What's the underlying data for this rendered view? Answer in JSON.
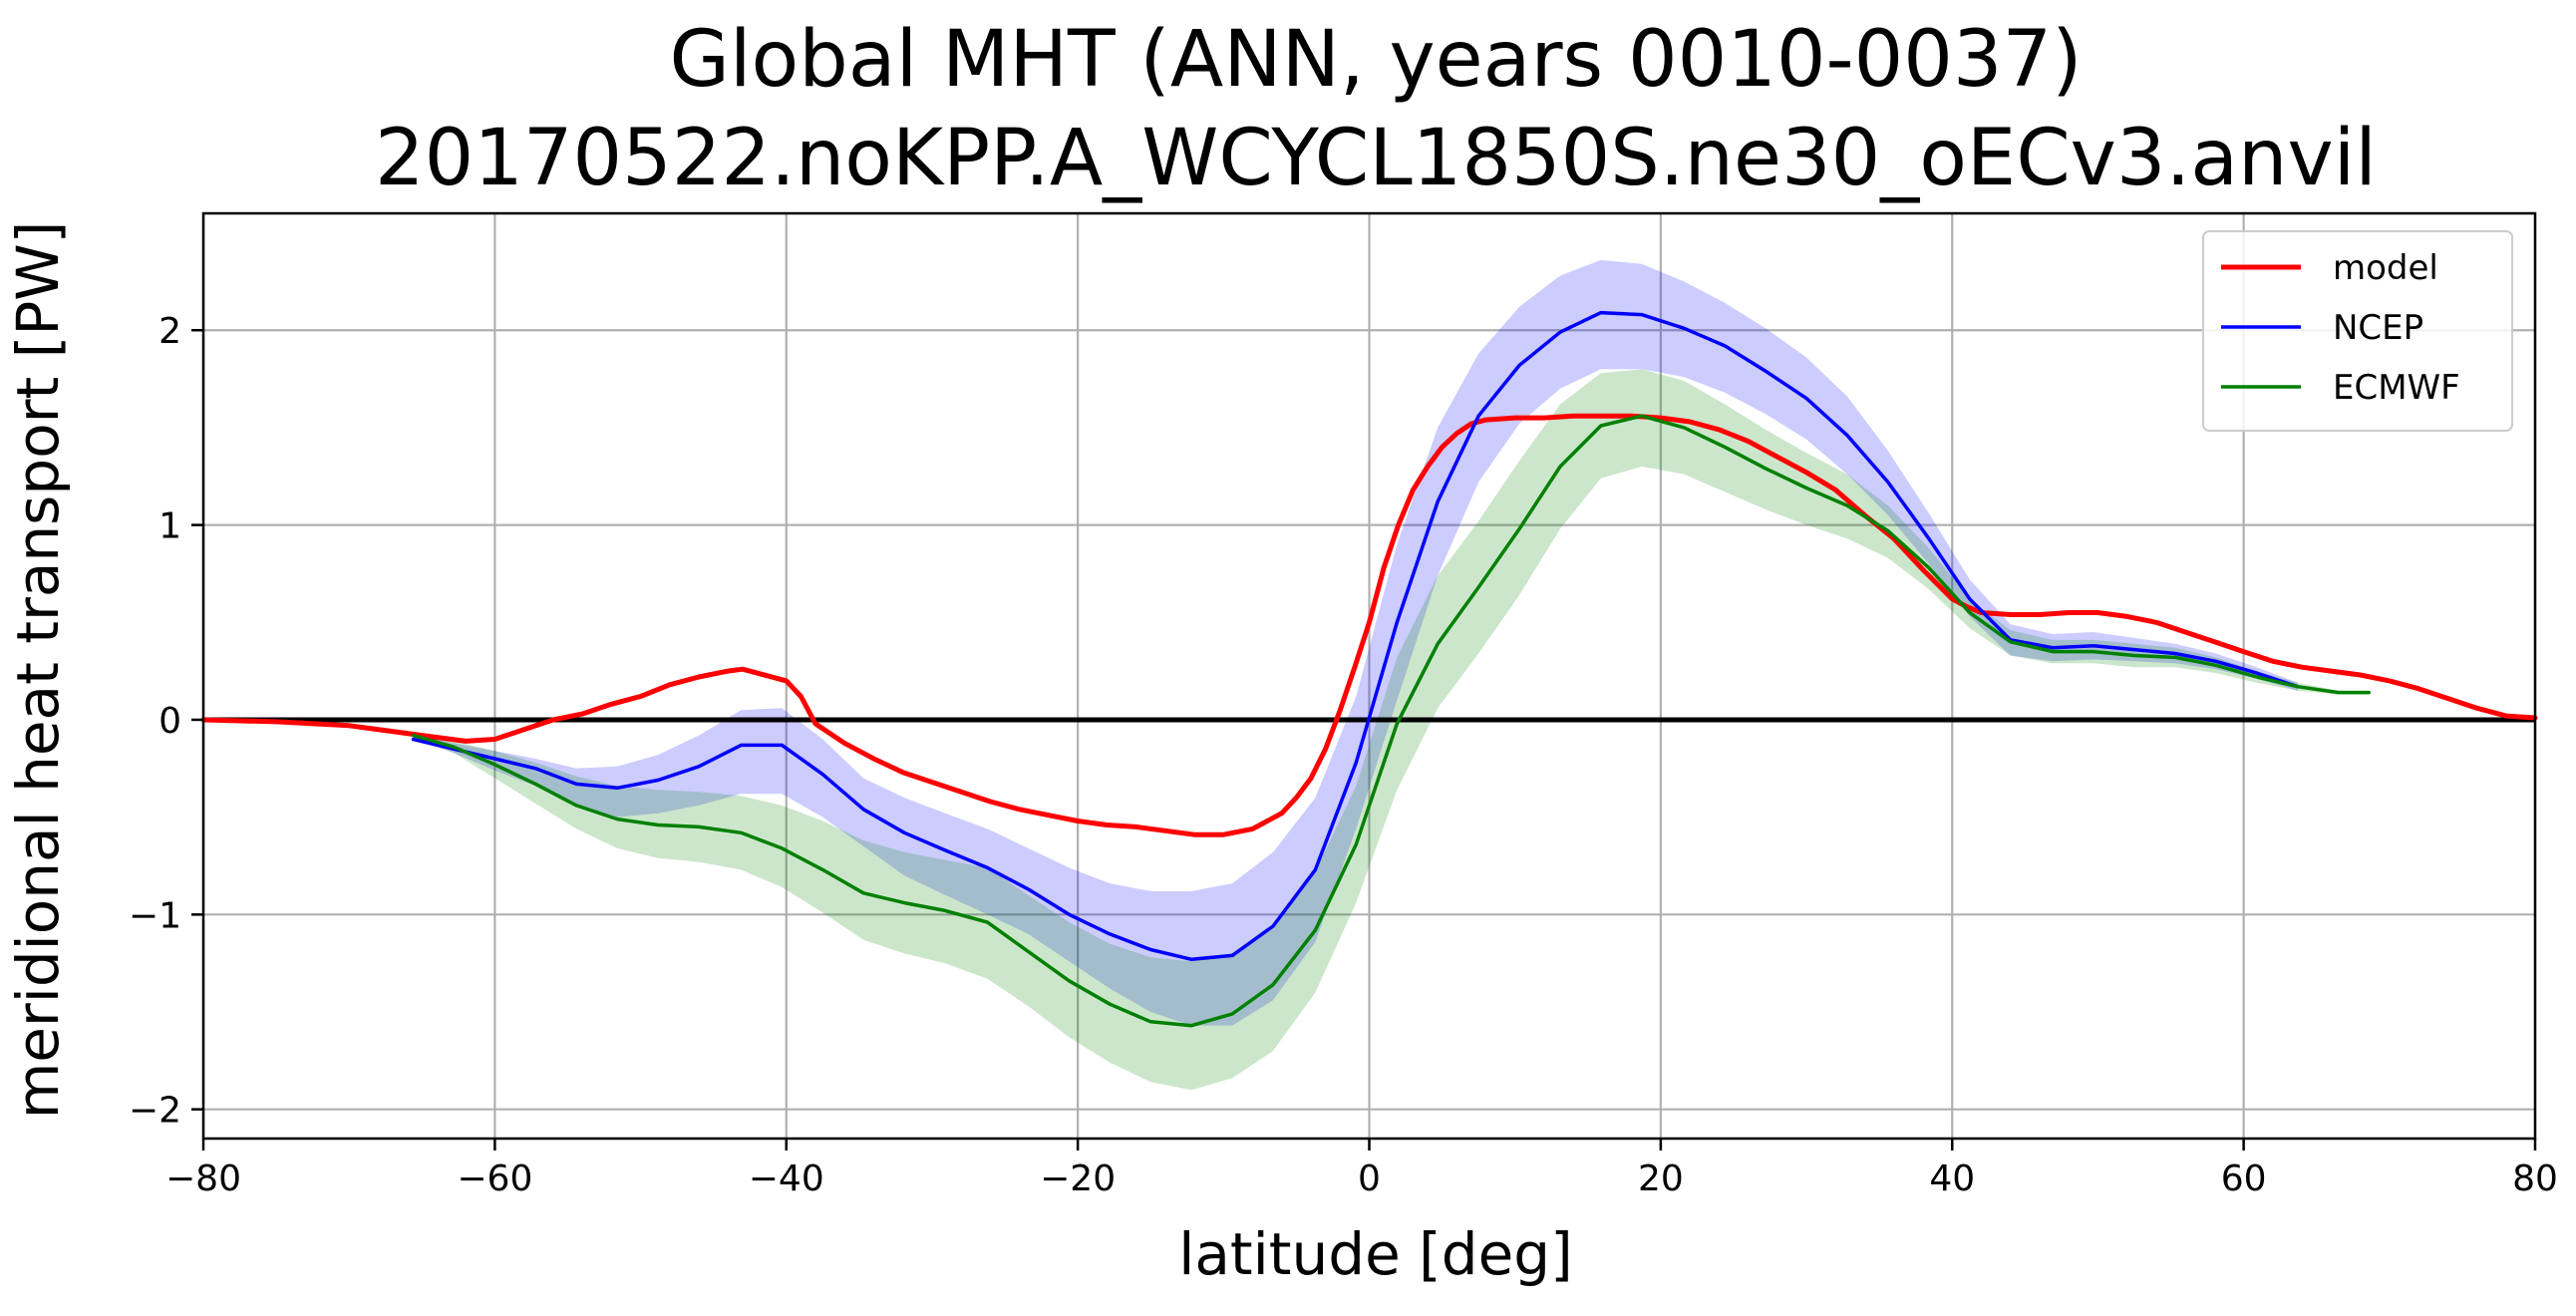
{
  "chart_data": {
    "type": "line",
    "title": "Global MHT (ANN, years 0010-0037)",
    "subtitle": "20170522.noKPP.A_WCYCL1850S.ne30_oECv3.anvil",
    "xlabel": "latitude [deg]",
    "ylabel": "meridional heat transport [PW]",
    "xlim": [
      -80,
      80
    ],
    "ylim": [
      -2.15,
      2.6
    ],
    "xticks": [
      -80,
      -60,
      -40,
      -20,
      0,
      20,
      40,
      60,
      80
    ],
    "xtick_labels": [
      "−80",
      "−60",
      "−40",
      "−20",
      "0",
      "20",
      "40",
      "60",
      "80"
    ],
    "yticks": [
      -2,
      -1,
      0,
      1,
      2
    ],
    "ytick_labels": [
      "−2",
      "−1",
      "0",
      "1",
      "2"
    ],
    "grid": true,
    "legend_position": "top-right",
    "zero_line": true,
    "series": [
      {
        "name": "model",
        "color": "#ff0000",
        "x": [
          -80,
          -75,
          -70,
          -65,
          -62,
          -60,
          -58,
          -56,
          -54,
          -52,
          -50,
          -48,
          -46,
          -44,
          -43,
          -42,
          -40,
          -39,
          -38,
          -36,
          -34,
          -32,
          -30,
          -28,
          -26,
          -24,
          -22,
          -20,
          -18,
          -16,
          -14,
          -12,
          -10,
          -8,
          -6,
          -5,
          -4,
          -3,
          -2,
          -1,
          0,
          1,
          2,
          3,
          4,
          5,
          6,
          7,
          8,
          10,
          12,
          14,
          16,
          18,
          20,
          22,
          24,
          26,
          28,
          30,
          32,
          34,
          36,
          38,
          40,
          41,
          42,
          44,
          46,
          48,
          50,
          52,
          54,
          56,
          58,
          60,
          62,
          64,
          66,
          68,
          70,
          72,
          74,
          76,
          78,
          80
        ],
        "y": [
          0.0,
          -0.01,
          -0.03,
          -0.08,
          -0.11,
          -0.1,
          -0.05,
          0.0,
          0.03,
          0.08,
          0.12,
          0.18,
          0.22,
          0.25,
          0.26,
          0.24,
          0.2,
          0.12,
          -0.02,
          -0.12,
          -0.2,
          -0.27,
          -0.32,
          -0.37,
          -0.42,
          -0.46,
          -0.49,
          -0.52,
          -0.54,
          -0.55,
          -0.57,
          -0.59,
          -0.59,
          -0.56,
          -0.48,
          -0.4,
          -0.3,
          -0.15,
          0.05,
          0.27,
          0.5,
          0.78,
          1.0,
          1.18,
          1.3,
          1.4,
          1.47,
          1.52,
          1.54,
          1.55,
          1.55,
          1.56,
          1.56,
          1.56,
          1.55,
          1.53,
          1.49,
          1.43,
          1.35,
          1.27,
          1.18,
          1.05,
          0.93,
          0.77,
          0.62,
          0.58,
          0.55,
          0.54,
          0.54,
          0.55,
          0.55,
          0.53,
          0.5,
          0.45,
          0.4,
          0.35,
          0.3,
          0.27,
          0.25,
          0.23,
          0.2,
          0.16,
          0.11,
          0.06,
          0.02,
          0.01
        ]
      },
      {
        "name": "NCEP",
        "color": "#0000ff",
        "x": [
          -65.6,
          -62.8,
          -60,
          -57.2,
          -54.4,
          -51.6,
          -48.8,
          -46,
          -43.1,
          -40.3,
          -37.5,
          -34.7,
          -31.9,
          -29.1,
          -26.2,
          -23.4,
          -20.6,
          -17.8,
          -15,
          -12.2,
          -9.4,
          -6.6,
          -3.7,
          -0.9,
          1.9,
          4.7,
          7.5,
          10.3,
          13.1,
          15.9,
          18.7,
          21.6,
          24.4,
          27.2,
          30,
          32.8,
          35.6,
          38.4,
          41.2,
          44,
          46.9,
          49.7,
          52.5,
          55.3,
          58.1,
          60.9,
          63.7
        ],
        "y": [
          -0.1,
          -0.15,
          -0.2,
          -0.25,
          -0.33,
          -0.35,
          -0.31,
          -0.24,
          -0.13,
          -0.13,
          -0.28,
          -0.46,
          -0.58,
          -0.67,
          -0.76,
          -0.87,
          -1.0,
          -1.1,
          -1.18,
          -1.23,
          -1.21,
          -1.06,
          -0.77,
          -0.22,
          0.5,
          1.12,
          1.56,
          1.82,
          1.99,
          2.09,
          2.08,
          2.01,
          1.92,
          1.79,
          1.65,
          1.46,
          1.22,
          0.93,
          0.62,
          0.41,
          0.37,
          0.38,
          0.36,
          0.34,
          0.3,
          0.24,
          0.17
        ]
      },
      {
        "name": "ECMWF",
        "color": "#008000",
        "x": [
          -65.6,
          -62.8,
          -60,
          -57.2,
          -54.4,
          -51.6,
          -48.8,
          -46,
          -43.1,
          -40.3,
          -37.5,
          -34.7,
          -31.9,
          -29.1,
          -26.2,
          -23.4,
          -20.6,
          -17.8,
          -15,
          -12.2,
          -9.4,
          -6.6,
          -3.7,
          -0.9,
          1.9,
          4.7,
          7.5,
          10.3,
          13.1,
          15.9,
          18.7,
          21.6,
          24.4,
          27.2,
          30,
          32.8,
          35.6,
          38.4,
          41.2,
          44,
          46.9,
          49.7,
          52.5,
          55.3,
          58.1,
          60.9,
          63.7,
          66.5,
          68.6
        ],
        "y": [
          -0.08,
          -0.14,
          -0.23,
          -0.33,
          -0.44,
          -0.51,
          -0.54,
          -0.55,
          -0.58,
          -0.66,
          -0.77,
          -0.89,
          -0.94,
          -0.98,
          -1.04,
          -1.19,
          -1.34,
          -1.46,
          -1.55,
          -1.57,
          -1.51,
          -1.36,
          -1.08,
          -0.64,
          -0.02,
          0.39,
          0.68,
          0.98,
          1.3,
          1.51,
          1.56,
          1.5,
          1.4,
          1.29,
          1.19,
          1.1,
          0.97,
          0.78,
          0.55,
          0.4,
          0.35,
          0.35,
          0.33,
          0.32,
          0.28,
          0.22,
          0.17,
          0.14,
          0.14
        ]
      }
    ],
    "bands": [
      {
        "name": "NCEP",
        "color": "#0000ff",
        "opacity": 0.2,
        "x": [
          -65.6,
          -62.8,
          -60,
          -57.2,
          -54.4,
          -51.6,
          -48.8,
          -46,
          -43.1,
          -40.3,
          -37.5,
          -34.7,
          -31.9,
          -29.1,
          -26.2,
          -23.4,
          -20.6,
          -17.8,
          -15,
          -12.2,
          -9.4,
          -6.6,
          -3.7,
          -0.9,
          1.9,
          4.7,
          7.5,
          10.3,
          13.1,
          15.9,
          18.7,
          21.6,
          24.4,
          27.2,
          30,
          32.8,
          35.6,
          38.4,
          41.2,
          44,
          46.9,
          49.7,
          52.5,
          55.3,
          58.1,
          60.9,
          63.7
        ],
        "upper": [
          -0.08,
          -0.12,
          -0.16,
          -0.2,
          -0.25,
          -0.24,
          -0.18,
          -0.08,
          0.05,
          0.06,
          -0.1,
          -0.3,
          -0.4,
          -0.48,
          -0.56,
          -0.66,
          -0.76,
          -0.84,
          -0.88,
          -0.88,
          -0.84,
          -0.68,
          -0.4,
          0.12,
          0.9,
          1.5,
          1.88,
          2.12,
          2.28,
          2.36,
          2.34,
          2.25,
          2.14,
          2.01,
          1.86,
          1.66,
          1.38,
          1.06,
          0.72,
          0.49,
          0.44,
          0.45,
          0.42,
          0.39,
          0.34,
          0.27,
          0.19
        ],
        "lower": [
          -0.1,
          -0.17,
          -0.26,
          -0.34,
          -0.44,
          -0.5,
          -0.48,
          -0.44,
          -0.38,
          -0.38,
          -0.5,
          -0.65,
          -0.8,
          -0.9,
          -1.0,
          -1.1,
          -1.24,
          -1.38,
          -1.5,
          -1.57,
          -1.57,
          -1.44,
          -1.14,
          -0.56,
          0.1,
          0.74,
          1.22,
          1.52,
          1.7,
          1.8,
          1.8,
          1.76,
          1.68,
          1.57,
          1.44,
          1.26,
          1.05,
          0.8,
          0.53,
          0.33,
          0.3,
          0.31,
          0.3,
          0.29,
          0.26,
          0.21,
          0.15
        ]
      },
      {
        "name": "ECMWF",
        "color": "#008000",
        "opacity": 0.2,
        "x": [
          -65.6,
          -62.8,
          -60,
          -57.2,
          -54.4,
          -51.6,
          -48.8,
          -46,
          -43.1,
          -40.3,
          -37.5,
          -34.7,
          -31.9,
          -29.1,
          -26.2,
          -23.4,
          -20.6,
          -17.8,
          -15,
          -12.2,
          -9.4,
          -6.6,
          -3.7,
          -0.9,
          1.9,
          4.7,
          7.5,
          10.3,
          13.1,
          15.9,
          18.7,
          21.6,
          24.4,
          27.2,
          30,
          32.8,
          35.6,
          38.4,
          41.2,
          44,
          46.9,
          49.7,
          52.5,
          55.3,
          58.1,
          60.9,
          63.7,
          66.5,
          68.6
        ],
        "upper": [
          -0.07,
          -0.11,
          -0.16,
          -0.22,
          -0.29,
          -0.34,
          -0.36,
          -0.37,
          -0.39,
          -0.44,
          -0.52,
          -0.62,
          -0.68,
          -0.72,
          -0.76,
          -0.9,
          -1.04,
          -1.15,
          -1.22,
          -1.24,
          -1.2,
          -1.06,
          -0.78,
          -0.34,
          0.32,
          0.74,
          1.02,
          1.33,
          1.62,
          1.78,
          1.8,
          1.74,
          1.62,
          1.49,
          1.37,
          1.26,
          1.1,
          0.88,
          0.62,
          0.46,
          0.41,
          0.41,
          0.39,
          0.37,
          0.32,
          0.25,
          0.19,
          0.15,
          0.15
        ],
        "lower": [
          -0.09,
          -0.17,
          -0.3,
          -0.43,
          -0.56,
          -0.66,
          -0.71,
          -0.73,
          -0.77,
          -0.86,
          -0.99,
          -1.13,
          -1.2,
          -1.25,
          -1.33,
          -1.47,
          -1.63,
          -1.76,
          -1.86,
          -1.9,
          -1.84,
          -1.7,
          -1.4,
          -0.94,
          -0.36,
          0.06,
          0.34,
          0.64,
          0.98,
          1.24,
          1.3,
          1.26,
          1.17,
          1.08,
          1.0,
          0.93,
          0.83,
          0.67,
          0.47,
          0.33,
          0.29,
          0.29,
          0.27,
          0.27,
          0.24,
          0.19,
          0.15,
          0.13,
          0.13
        ]
      }
    ]
  }
}
